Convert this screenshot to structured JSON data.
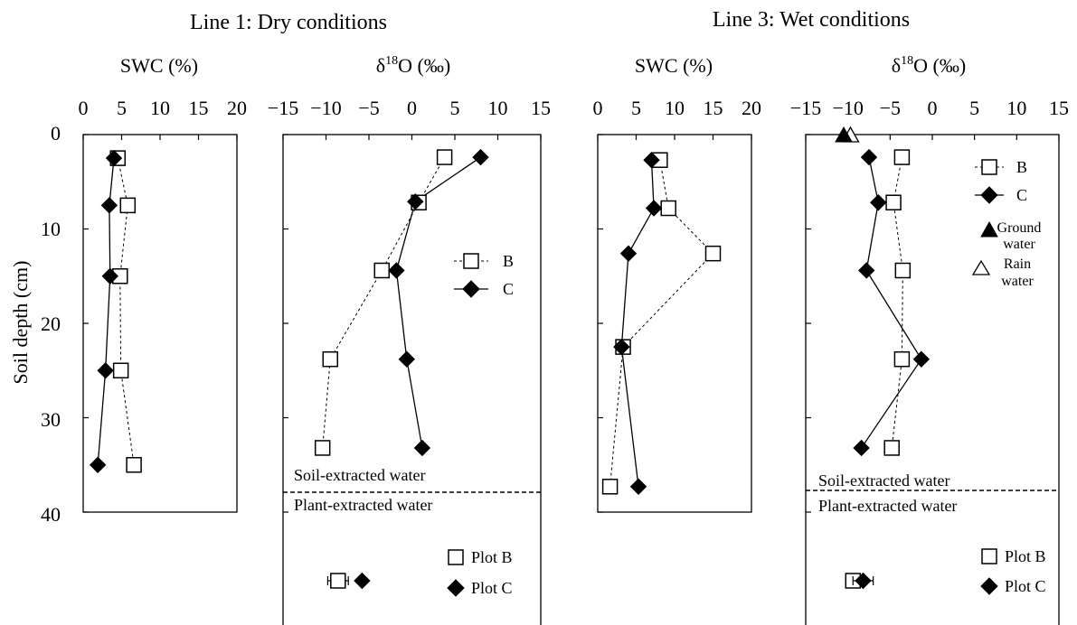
{
  "figure": {
    "headings": [
      "Line 1: Dry conditions",
      "Line 3: Wet conditions"
    ],
    "y_axis_label": "Soil depth (cm)",
    "soil_note": "Soil-extracted water",
    "plant_note": "Plant-extracted water",
    "legend_profile": {
      "b": "B",
      "c": "C",
      "ground": [
        "Ground",
        "water"
      ],
      "rain": [
        "Rain",
        "water"
      ]
    },
    "legend_plant": {
      "b": "Plot B",
      "c": "Plot C"
    }
  },
  "chart_data": [
    {
      "type": "line",
      "title": "SWC (%)",
      "xlabel": "SWC (%)",
      "ylabel": "Soil depth (cm)",
      "xlim": [
        0,
        20
      ],
      "ylim": [
        0,
        40
      ],
      "x_ticks": [
        "0",
        "5",
        "10",
        "15",
        "20"
      ],
      "y_ticks": [
        "0",
        "10",
        "20",
        "30",
        "40"
      ],
      "series": [
        {
          "name": "B",
          "points": [
            [
              4.5,
              2.5
            ],
            [
              5.8,
              7.5
            ],
            [
              4.8,
              15
            ],
            [
              4.9,
              25
            ],
            [
              6.6,
              35
            ]
          ]
        },
        {
          "name": "C",
          "points": [
            [
              4.0,
              2.5
            ],
            [
              3.4,
              7.5
            ],
            [
              3.5,
              15
            ],
            [
              2.9,
              25
            ],
            [
              1.9,
              35
            ]
          ]
        }
      ]
    },
    {
      "type": "line",
      "title": "δ18O (‰)",
      "xlabel": "δ18O (‰)",
      "xlim": [
        -15,
        15
      ],
      "ylim": [
        0,
        40
      ],
      "x_ticks": [
        "−15",
        "−10",
        "−5",
        "0",
        "5",
        "10",
        "15"
      ],
      "separator_depth": 37.5,
      "series": [
        {
          "name": "B",
          "points": [
            [
              3.8,
              2.4
            ],
            [
              0.8,
              7.2
            ],
            [
              -3.5,
              14.4
            ],
            [
              -9.5,
              23.8
            ],
            [
              -10.4,
              33.2
            ]
          ]
        },
        {
          "name": "C",
          "points": [
            [
              8.0,
              2.4
            ],
            [
              0.4,
              7.1
            ],
            [
              -1.8,
              14.4
            ],
            [
              -0.6,
              23.8
            ],
            [
              1.2,
              33.2
            ]
          ]
        }
      ],
      "plant_water": [
        {
          "name": "Plot B",
          "value": -8.6,
          "error": 1.2
        },
        {
          "name": "Plot C",
          "value": -5.8
        }
      ]
    },
    {
      "type": "line",
      "title": "SWC (%)",
      "xlabel": "SWC (%)",
      "xlim": [
        0,
        20
      ],
      "ylim": [
        0,
        40
      ],
      "x_ticks": [
        "0",
        "5",
        "10",
        "15",
        "20"
      ],
      "series": [
        {
          "name": "B",
          "points": [
            [
              8.1,
              2.7
            ],
            [
              9.2,
              7.8
            ],
            [
              15.0,
              12.6
            ],
            [
              3.3,
              22.5
            ],
            [
              1.6,
              37.3
            ]
          ]
        },
        {
          "name": "C",
          "points": [
            [
              7.0,
              2.7
            ],
            [
              7.3,
              7.8
            ],
            [
              4.0,
              12.6
            ],
            [
              3.1,
              22.5
            ],
            [
              5.3,
              37.3
            ]
          ]
        }
      ]
    },
    {
      "type": "line",
      "title": "δ18O (‰)",
      "xlabel": "δ18O (‰)",
      "xlim": [
        -15,
        15
      ],
      "ylim": [
        0,
        40
      ],
      "x_ticks": [
        "−15",
        "−10",
        "−5",
        "0",
        "5",
        "10",
        "15"
      ],
      "separator_depth": 37.5,
      "series": [
        {
          "name": "B",
          "points": [
            [
              -3.6,
              2.4
            ],
            [
              -4.6,
              7.2
            ],
            [
              -3.5,
              14.4
            ],
            [
              -3.6,
              23.8
            ],
            [
              -4.8,
              33.2
            ]
          ]
        },
        {
          "name": "C",
          "points": [
            [
              -7.5,
              2.4
            ],
            [
              -6.4,
              7.2
            ],
            [
              -7.8,
              14.4
            ],
            [
              -1.3,
              23.8
            ],
            [
              -8.4,
              33.2
            ]
          ]
        }
      ],
      "ground_water": {
        "value": -10.5,
        "depth": 0
      },
      "rain_water": {
        "value": -9.7,
        "depth": 0
      },
      "plant_water": [
        {
          "name": "Plot B",
          "value": -9.4
        },
        {
          "name": "Plot C",
          "value": -8.2,
          "error": 1.2
        }
      ]
    }
  ]
}
